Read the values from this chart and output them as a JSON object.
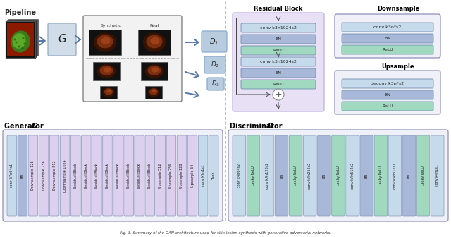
{
  "fig_width": 6.4,
  "fig_height": 3.36,
  "bg_color": "#ffffff",
  "pipeline_title": "Pipeline",
  "generator_title": "Generator ",
  "generator_title_italic": "G",
  "discriminator_title": "Discriminator ",
  "discriminator_title_italic": "D",
  "residual_title": "Residual Block",
  "downsample_title": "Downsample",
  "upsample_title": "Upsample",
  "gen_blocks": [
    {
      "label": "conv k7n64s1",
      "color": "#c5daea"
    },
    {
      "label": "BN",
      "color": "#a8b8d8"
    },
    {
      "label": "Downsample 128",
      "color": "#ddd0ee"
    },
    {
      "label": "Downsample 256",
      "color": "#ddd0ee"
    },
    {
      "label": "Downsample 512",
      "color": "#ddd0ee"
    },
    {
      "label": "Downsample 1024",
      "color": "#ddd0ee"
    },
    {
      "label": "Residual Block",
      "color": "#ddd0ee"
    },
    {
      "label": "Residual Block",
      "color": "#ddd0ee"
    },
    {
      "label": "Residual Block",
      "color": "#ddd0ee"
    },
    {
      "label": "Residual Block",
      "color": "#ddd0ee"
    },
    {
      "label": "Residual Block",
      "color": "#ddd0ee"
    },
    {
      "label": "Residual Block",
      "color": "#ddd0ee"
    },
    {
      "label": "Residual Block",
      "color": "#ddd0ee"
    },
    {
      "label": "Residual Block",
      "color": "#ddd0ee"
    },
    {
      "label": "Upsample 512",
      "color": "#ddd0ee"
    },
    {
      "label": "Upsample 256",
      "color": "#ddd0ee"
    },
    {
      "label": "Upsample 128",
      "color": "#ddd0ee"
    },
    {
      "label": "Upsample 64",
      "color": "#ddd0ee"
    },
    {
      "label": "conv k7n1s1",
      "color": "#c5daea"
    },
    {
      "label": "Tanh",
      "color": "#c5daea"
    }
  ],
  "disc_blocks": [
    {
      "label": "conv k4n64s2",
      "color": "#c5daea"
    },
    {
      "label": "Leaky ReLU",
      "color": "#a0d8c0"
    },
    {
      "label": "conv k4n128s2",
      "color": "#c5daea"
    },
    {
      "label": "BN",
      "color": "#a8b8d8"
    },
    {
      "label": "Leaky ReLU",
      "color": "#a0d8c0"
    },
    {
      "label": "conv k4n256s2",
      "color": "#c5daea"
    },
    {
      "label": "BN",
      "color": "#a8b8d8"
    },
    {
      "label": "Leaky ReLU",
      "color": "#a0d8c0"
    },
    {
      "label": "conv k4n512s2",
      "color": "#c5daea"
    },
    {
      "label": "BN",
      "color": "#a8b8d8"
    },
    {
      "label": "Leaky ReLU",
      "color": "#a0d8c0"
    },
    {
      "label": "conv k4n512s1",
      "color": "#c5daea"
    },
    {
      "label": "BN",
      "color": "#a8b8d8"
    },
    {
      "label": "Leaky ReLU",
      "color": "#a0d8c0"
    },
    {
      "label": "conv k4n1s1",
      "color": "#c5daea"
    }
  ],
  "res_block_layers": [
    {
      "label": "conv k3n1024s2",
      "color": "#c5daea"
    },
    {
      "label": "BN",
      "color": "#a8b8d8"
    },
    {
      "label": "ReLU",
      "color": "#a0d8c0"
    },
    {
      "label": "conv k3n1024s2",
      "color": "#c5daea"
    },
    {
      "label": "BN",
      "color": "#a8b8d8"
    },
    {
      "label": "ReLU",
      "color": "#a0d8c0"
    }
  ],
  "ds_block_layers": [
    {
      "label": "conv k3n*s2",
      "color": "#c5daea"
    },
    {
      "label": "BN",
      "color": "#a8b8d8"
    },
    {
      "label": "ReLU",
      "color": "#a0d8c0"
    }
  ],
  "us_block_layers": [
    {
      "label": "deconv k3n*s2",
      "color": "#c5daea"
    },
    {
      "label": "BN",
      "color": "#a8b8d8"
    },
    {
      "label": "ReLU",
      "color": "#a0d8c0"
    }
  ],
  "caption": "Fig. 3. Summary of the GAN architecture used for skin lesion synthesis with generative adversarial networks."
}
